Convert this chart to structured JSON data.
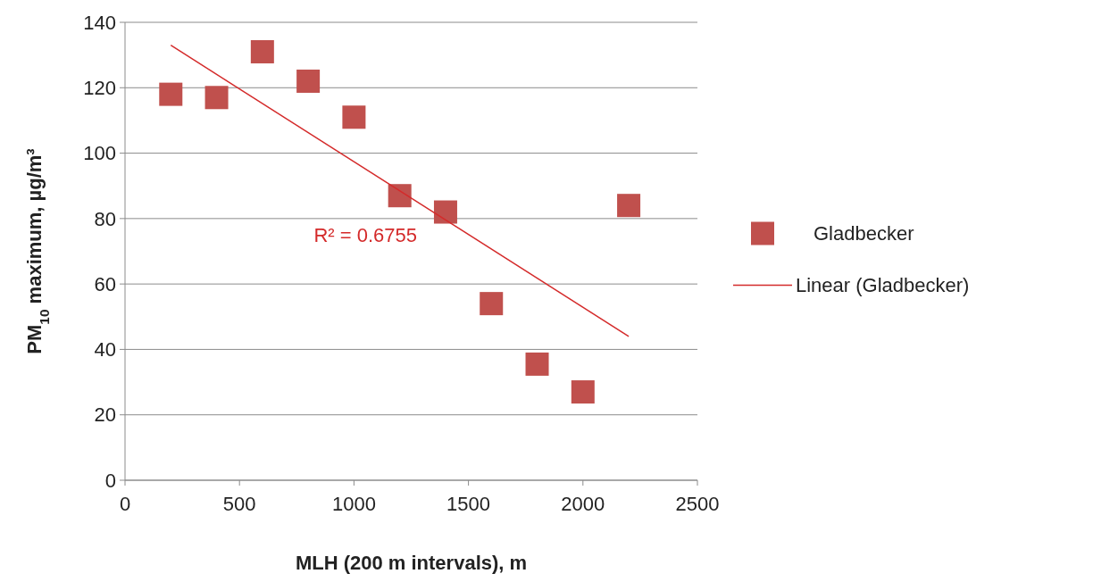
{
  "chart_data": {
    "type": "scatter",
    "xlabel": "MLH (200 m intervals), m",
    "ylabel": "PM$_{10}$ maximum, µg/m³",
    "xlim": [
      0,
      2500
    ],
    "xticks": [
      0,
      500,
      1000,
      1500,
      2000,
      2500
    ],
    "ylim": [
      0,
      140
    ],
    "yticks": [
      0,
      20,
      40,
      60,
      80,
      100,
      120,
      140
    ],
    "grid": "y",
    "legend": "right",
    "series": [
      {
        "name": "Gladbecker",
        "marker": "square",
        "color": "#c0504d",
        "x": [
          200,
          400,
          600,
          800,
          1000,
          1200,
          1400,
          1600,
          1800,
          2000,
          2200
        ],
        "values": [
          118,
          117,
          131,
          122,
          111,
          87,
          82,
          54,
          35.5,
          27,
          84
        ]
      },
      {
        "name": "Linear (Gladbecker)",
        "type": "line",
        "color": "#d42a2a",
        "line_style": "solid",
        "x": [
          200,
          2200
        ],
        "values": [
          133,
          44
        ]
      }
    ],
    "annotations": [
      "R² = 0.6755"
    ]
  }
}
